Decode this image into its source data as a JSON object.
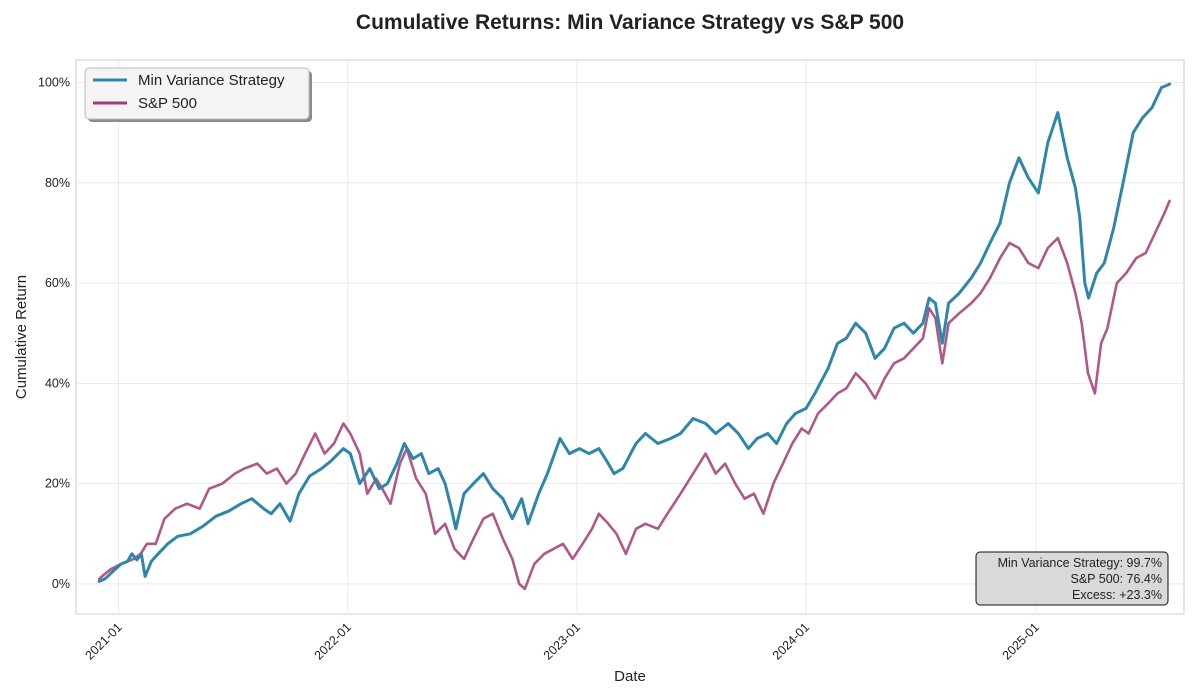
{
  "chart_data": {
    "type": "line",
    "title": "Cumulative Returns: Min Variance Strategy vs S&P 500",
    "xlabel": "Date",
    "ylabel": "Cumulative Return",
    "x_ticks": [
      "2021-01",
      "2022-01",
      "2023-01",
      "2024-01",
      "2025-01"
    ],
    "y_ticks": [
      "0%",
      "20%",
      "40%",
      "60%",
      "80%",
      "100%"
    ],
    "xlim": [
      "2020-10-25",
      "2025-08-25"
    ],
    "ylim": [
      -0.06,
      1.045
    ],
    "grid": true,
    "legend_position": "top-left",
    "series": [
      {
        "name": "Min Variance Strategy",
        "color": "#2E86AB",
        "points": [
          [
            "2020-12-01",
            0.005
          ],
          [
            "2020-12-10",
            0.01
          ],
          [
            "2020-12-20",
            0.022
          ],
          [
            "2021-01-05",
            0.04
          ],
          [
            "2021-01-15",
            0.045
          ],
          [
            "2021-01-22",
            0.06
          ],
          [
            "2021-01-30",
            0.048
          ],
          [
            "2021-02-06",
            0.06
          ],
          [
            "2021-02-12",
            0.015
          ],
          [
            "2021-02-22",
            0.045
          ],
          [
            "2021-03-05",
            0.06
          ],
          [
            "2021-03-20",
            0.08
          ],
          [
            "2021-04-05",
            0.095
          ],
          [
            "2021-04-25",
            0.1
          ],
          [
            "2021-05-15",
            0.115
          ],
          [
            "2021-06-05",
            0.135
          ],
          [
            "2021-06-25",
            0.145
          ],
          [
            "2021-07-15",
            0.16
          ],
          [
            "2021-08-01",
            0.17
          ],
          [
            "2021-08-20",
            0.15
          ],
          [
            "2021-09-01",
            0.14
          ],
          [
            "2021-09-15",
            0.16
          ],
          [
            "2021-10-01",
            0.125
          ],
          [
            "2021-10-15",
            0.18
          ],
          [
            "2021-11-01",
            0.215
          ],
          [
            "2021-11-20",
            0.23
          ],
          [
            "2021-12-05",
            0.245
          ],
          [
            "2021-12-25",
            0.27
          ],
          [
            "2022-01-05",
            0.26
          ],
          [
            "2022-01-20",
            0.2
          ],
          [
            "2022-02-05",
            0.23
          ],
          [
            "2022-02-20",
            0.19
          ],
          [
            "2022-03-05",
            0.2
          ],
          [
            "2022-03-20",
            0.24
          ],
          [
            "2022-04-01",
            0.28
          ],
          [
            "2022-04-15",
            0.25
          ],
          [
            "2022-04-28",
            0.26
          ],
          [
            "2022-05-10",
            0.22
          ],
          [
            "2022-05-25",
            0.23
          ],
          [
            "2022-06-05",
            0.2
          ],
          [
            "2022-06-15",
            0.15
          ],
          [
            "2022-06-22",
            0.11
          ],
          [
            "2022-07-05",
            0.18
          ],
          [
            "2022-07-20",
            0.2
          ],
          [
            "2022-08-05",
            0.22
          ],
          [
            "2022-08-20",
            0.19
          ],
          [
            "2022-09-05",
            0.17
          ],
          [
            "2022-09-20",
            0.13
          ],
          [
            "2022-10-05",
            0.17
          ],
          [
            "2022-10-15",
            0.12
          ],
          [
            "2022-11-01",
            0.18
          ],
          [
            "2022-11-15",
            0.22
          ],
          [
            "2022-12-05",
            0.29
          ],
          [
            "2022-12-20",
            0.26
          ],
          [
            "2023-01-05",
            0.27
          ],
          [
            "2023-01-20",
            0.26
          ],
          [
            "2023-02-05",
            0.27
          ],
          [
            "2023-02-20",
            0.24
          ],
          [
            "2023-03-01",
            0.22
          ],
          [
            "2023-03-15",
            0.23
          ],
          [
            "2023-04-05",
            0.28
          ],
          [
            "2023-04-20",
            0.3
          ],
          [
            "2023-05-10",
            0.28
          ],
          [
            "2023-05-30",
            0.29
          ],
          [
            "2023-06-15",
            0.3
          ],
          [
            "2023-07-05",
            0.33
          ],
          [
            "2023-07-25",
            0.32
          ],
          [
            "2023-08-10",
            0.3
          ],
          [
            "2023-08-30",
            0.32
          ],
          [
            "2023-09-15",
            0.3
          ],
          [
            "2023-10-01",
            0.27
          ],
          [
            "2023-10-15",
            0.29
          ],
          [
            "2023-11-01",
            0.3
          ],
          [
            "2023-11-15",
            0.28
          ],
          [
            "2023-12-01",
            0.32
          ],
          [
            "2023-12-15",
            0.34
          ],
          [
            "2024-01-01",
            0.35
          ],
          [
            "2024-01-15",
            0.38
          ],
          [
            "2024-02-05",
            0.43
          ],
          [
            "2024-02-20",
            0.48
          ],
          [
            "2024-03-05",
            0.49
          ],
          [
            "2024-03-20",
            0.52
          ],
          [
            "2024-04-05",
            0.5
          ],
          [
            "2024-04-20",
            0.45
          ],
          [
            "2024-05-05",
            0.47
          ],
          [
            "2024-05-20",
            0.51
          ],
          [
            "2024-06-05",
            0.52
          ],
          [
            "2024-06-20",
            0.5
          ],
          [
            "2024-07-05",
            0.52
          ],
          [
            "2024-07-15",
            0.57
          ],
          [
            "2024-07-25",
            0.56
          ],
          [
            "2024-08-05",
            0.48
          ],
          [
            "2024-08-15",
            0.56
          ],
          [
            "2024-09-01",
            0.58
          ],
          [
            "2024-09-20",
            0.61
          ],
          [
            "2024-10-05",
            0.64
          ],
          [
            "2024-10-20",
            0.68
          ],
          [
            "2024-11-05",
            0.72
          ],
          [
            "2024-11-20",
            0.8
          ],
          [
            "2024-12-05",
            0.85
          ],
          [
            "2024-12-20",
            0.81
          ],
          [
            "2025-01-05",
            0.78
          ],
          [
            "2025-01-20",
            0.88
          ],
          [
            "2025-02-05",
            0.94
          ],
          [
            "2025-02-20",
            0.85
          ],
          [
            "2025-03-05",
            0.79
          ],
          [
            "2025-03-12",
            0.73
          ],
          [
            "2025-03-20",
            0.6
          ],
          [
            "2025-03-26",
            0.57
          ],
          [
            "2025-04-08",
            0.62
          ],
          [
            "2025-04-20",
            0.64
          ],
          [
            "2025-05-05",
            0.71
          ],
          [
            "2025-05-20",
            0.8
          ],
          [
            "2025-06-05",
            0.9
          ],
          [
            "2025-06-20",
            0.93
          ],
          [
            "2025-07-05",
            0.95
          ],
          [
            "2025-07-20",
            0.99
          ],
          [
            "2025-08-02",
            0.997
          ]
        ]
      },
      {
        "name": "S&P 500",
        "color": "#A23B72",
        "points": [
          [
            "2020-12-01",
            0.01
          ],
          [
            "2020-12-10",
            0.02
          ],
          [
            "2020-12-20",
            0.03
          ],
          [
            "2021-01-05",
            0.04
          ],
          [
            "2021-01-15",
            0.045
          ],
          [
            "2021-01-25",
            0.05
          ],
          [
            "2021-02-05",
            0.06
          ],
          [
            "2021-02-15",
            0.08
          ],
          [
            "2021-03-01",
            0.08
          ],
          [
            "2021-03-15",
            0.13
          ],
          [
            "2021-04-01",
            0.15
          ],
          [
            "2021-04-20",
            0.16
          ],
          [
            "2021-05-10",
            0.15
          ],
          [
            "2021-05-25",
            0.19
          ],
          [
            "2021-06-15",
            0.2
          ],
          [
            "2021-07-05",
            0.22
          ],
          [
            "2021-07-20",
            0.23
          ],
          [
            "2021-08-10",
            0.24
          ],
          [
            "2021-08-25",
            0.22
          ],
          [
            "2021-09-10",
            0.23
          ],
          [
            "2021-09-25",
            0.2
          ],
          [
            "2021-10-10",
            0.22
          ],
          [
            "2021-10-25",
            0.26
          ],
          [
            "2021-11-10",
            0.3
          ],
          [
            "2021-11-25",
            0.26
          ],
          [
            "2021-12-10",
            0.28
          ],
          [
            "2021-12-25",
            0.32
          ],
          [
            "2022-01-05",
            0.3
          ],
          [
            "2022-01-20",
            0.26
          ],
          [
            "2022-02-01",
            0.18
          ],
          [
            "2022-02-15",
            0.21
          ],
          [
            "2022-02-25",
            0.19
          ],
          [
            "2022-03-10",
            0.16
          ],
          [
            "2022-03-25",
            0.24
          ],
          [
            "2022-04-05",
            0.27
          ],
          [
            "2022-04-20",
            0.21
          ],
          [
            "2022-05-05",
            0.18
          ],
          [
            "2022-05-20",
            0.1
          ],
          [
            "2022-06-05",
            0.12
          ],
          [
            "2022-06-20",
            0.07
          ],
          [
            "2022-07-05",
            0.05
          ],
          [
            "2022-07-20",
            0.09
          ],
          [
            "2022-08-05",
            0.13
          ],
          [
            "2022-08-20",
            0.14
          ],
          [
            "2022-09-05",
            0.09
          ],
          [
            "2022-09-20",
            0.05
          ],
          [
            "2022-10-01",
            0.0
          ],
          [
            "2022-10-10",
            -0.01
          ],
          [
            "2022-10-25",
            0.04
          ],
          [
            "2022-11-10",
            0.06
          ],
          [
            "2022-11-25",
            0.07
          ],
          [
            "2022-12-10",
            0.08
          ],
          [
            "2022-12-25",
            0.05
          ],
          [
            "2023-01-10",
            0.08
          ],
          [
            "2023-01-25",
            0.11
          ],
          [
            "2023-02-05",
            0.14
          ],
          [
            "2023-02-20",
            0.12
          ],
          [
            "2023-03-05",
            0.1
          ],
          [
            "2023-03-20",
            0.06
          ],
          [
            "2023-04-05",
            0.11
          ],
          [
            "2023-04-20",
            0.12
          ],
          [
            "2023-05-10",
            0.11
          ],
          [
            "2023-05-25",
            0.14
          ],
          [
            "2023-06-15",
            0.18
          ],
          [
            "2023-07-05",
            0.22
          ],
          [
            "2023-07-25",
            0.26
          ],
          [
            "2023-08-10",
            0.22
          ],
          [
            "2023-08-25",
            0.24
          ],
          [
            "2023-09-10",
            0.2
          ],
          [
            "2023-09-25",
            0.17
          ],
          [
            "2023-10-10",
            0.18
          ],
          [
            "2023-10-25",
            0.14
          ],
          [
            "2023-11-10",
            0.2
          ],
          [
            "2023-11-25",
            0.24
          ],
          [
            "2023-12-10",
            0.28
          ],
          [
            "2023-12-25",
            0.31
          ],
          [
            "2024-01-05",
            0.3
          ],
          [
            "2024-01-20",
            0.34
          ],
          [
            "2024-02-05",
            0.36
          ],
          [
            "2024-02-20",
            0.38
          ],
          [
            "2024-03-05",
            0.39
          ],
          [
            "2024-03-20",
            0.42
          ],
          [
            "2024-04-05",
            0.4
          ],
          [
            "2024-04-20",
            0.37
          ],
          [
            "2024-05-05",
            0.41
          ],
          [
            "2024-05-20",
            0.44
          ],
          [
            "2024-06-05",
            0.45
          ],
          [
            "2024-06-20",
            0.47
          ],
          [
            "2024-07-05",
            0.49
          ],
          [
            "2024-07-15",
            0.55
          ],
          [
            "2024-07-25",
            0.53
          ],
          [
            "2024-08-05",
            0.44
          ],
          [
            "2024-08-15",
            0.52
          ],
          [
            "2024-09-01",
            0.54
          ],
          [
            "2024-09-20",
            0.56
          ],
          [
            "2024-10-05",
            0.58
          ],
          [
            "2024-10-20",
            0.61
          ],
          [
            "2024-11-05",
            0.65
          ],
          [
            "2024-11-20",
            0.68
          ],
          [
            "2024-12-05",
            0.67
          ],
          [
            "2024-12-20",
            0.64
          ],
          [
            "2025-01-05",
            0.63
          ],
          [
            "2025-01-20",
            0.67
          ],
          [
            "2025-02-05",
            0.69
          ],
          [
            "2025-02-20",
            0.64
          ],
          [
            "2025-03-05",
            0.58
          ],
          [
            "2025-03-15",
            0.52
          ],
          [
            "2025-03-25",
            0.42
          ],
          [
            "2025-04-05",
            0.38
          ],
          [
            "2025-04-15",
            0.48
          ],
          [
            "2025-04-25",
            0.51
          ],
          [
            "2025-05-10",
            0.6
          ],
          [
            "2025-05-25",
            0.62
          ],
          [
            "2025-06-10",
            0.65
          ],
          [
            "2025-06-25",
            0.66
          ],
          [
            "2025-07-10",
            0.7
          ],
          [
            "2025-07-25",
            0.74
          ],
          [
            "2025-08-02",
            0.764
          ]
        ]
      }
    ],
    "annotation": {
      "lines": [
        "Min Variance Strategy: 99.7%",
        "S&P 500: 76.4%",
        "Excess: +23.3%"
      ],
      "position": "bottom-right"
    }
  }
}
